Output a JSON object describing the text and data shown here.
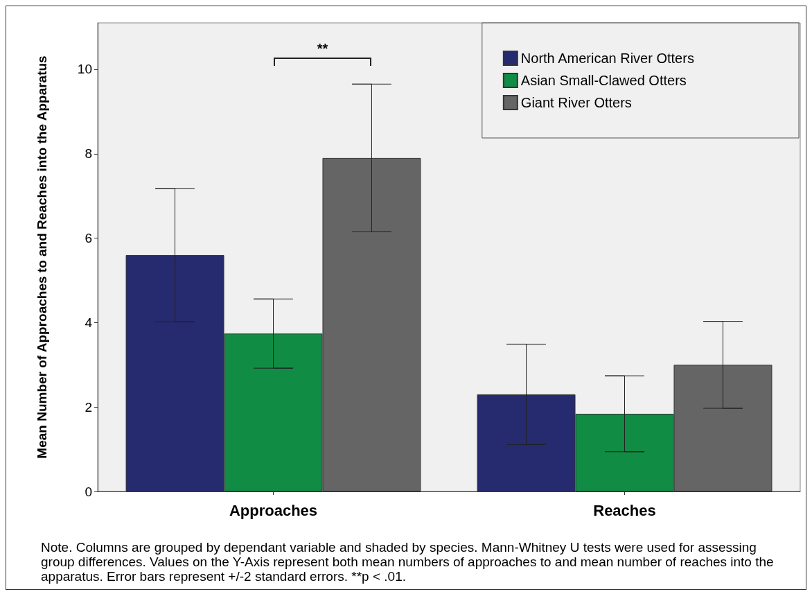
{
  "chart_data": {
    "type": "bar",
    "ylabel": "Mean Number of Approaches to and Reaches into the Apparatus",
    "categories": [
      "Approaches",
      "Reaches"
    ],
    "series": [
      {
        "name": "North American River Otters",
        "color": "#262a6e",
        "values": [
          5.6,
          2.3
        ],
        "errors": [
          1.58,
          1.19
        ]
      },
      {
        "name": "Asian Small-Clawed Otters",
        "color": "#118c44",
        "values": [
          3.74,
          1.84
        ],
        "errors": [
          0.82,
          0.9
        ]
      },
      {
        "name": "Giant River Otters",
        "color": "#656565",
        "values": [
          7.9,
          3.0
        ],
        "errors": [
          1.75,
          1.03
        ]
      }
    ],
    "ylim": [
      0,
      11.1
    ],
    "yticks": [
      0,
      2,
      4,
      6,
      8,
      10
    ],
    "grid": false,
    "legend": "top right",
    "annotations": [
      "**",
      "Note. Columns are grouped by dependant variable and shaded by species. Mann-Whitney U tests were used for assessing group differences. Values on the Y-Axis represent both mean numbers of approaches to and mean number of reaches into the apparatus. Error bars represent +/-2 standard errors. **p < .01."
    ]
  }
}
